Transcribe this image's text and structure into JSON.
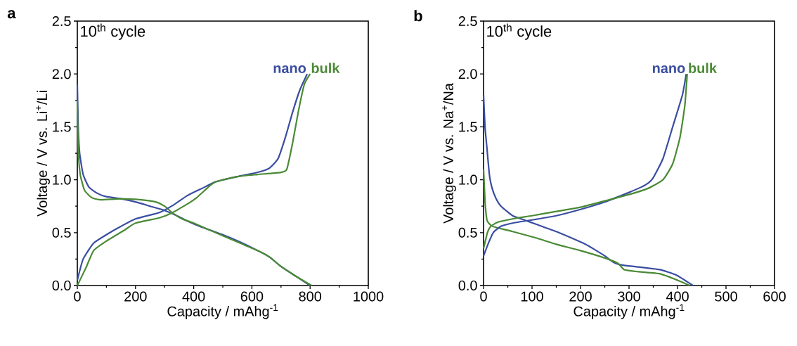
{
  "chart_data": [
    {
      "type": "line",
      "title": "a",
      "xlabel": "Capacity / mAhg$^{-1}$",
      "ylabel": "Voltage / V vs. Li$^{+}$/Li",
      "annotations": [
        "10$^{th}$ cycle"
      ],
      "xlim": [
        0,
        1000
      ],
      "ylim": [
        0,
        2.5
      ],
      "xticks": [
        0,
        200,
        400,
        600,
        800,
        1000
      ],
      "yticks": [
        {
          "value": 0,
          "label": "0.0"
        },
        {
          "value": 0.5,
          "label": "0.5"
        },
        {
          "value": 1,
          "label": "1.0"
        },
        {
          "value": 1.5,
          "label": "1.5"
        },
        {
          "value": 2,
          "label": "2.0"
        },
        {
          "value": 2.5,
          "label": "2.5"
        }
      ],
      "series": [
        {
          "color": "#3a4da0",
          "x": [
            0,
            3,
            8,
            20,
            40,
            70,
            100,
            150,
            200,
            250,
            300,
            350,
            378,
            420,
            500,
            560,
            620,
            660,
            700,
            750,
            800
          ],
          "values": [
            1.9,
            1.5,
            1.25,
            1.05,
            0.93,
            0.87,
            0.84,
            0.82,
            0.79,
            0.75,
            0.71,
            0.65,
            0.61,
            0.56,
            0.48,
            0.41,
            0.33,
            0.27,
            0.18,
            0.09,
            0
          ]
        },
        {
          "color": "#4a8a35",
          "x": [
            0,
            3,
            10,
            25,
            50,
            80,
            150,
            220,
            270,
            300,
            330,
            360,
            400,
            450,
            500,
            560,
            620,
            660,
            700,
            750,
            805
          ],
          "values": [
            1.75,
            1.3,
            1.05,
            0.9,
            0.83,
            0.81,
            0.82,
            0.81,
            0.79,
            0.75,
            0.68,
            0.63,
            0.59,
            0.53,
            0.47,
            0.4,
            0.33,
            0.27,
            0.18,
            0.09,
            0
          ]
        },
        {
          "name": "nano",
          "color": "#3a4da0",
          "x": [
            0,
            20,
            56,
            100,
            137,
            200,
            282,
            330,
            378,
            430,
            475,
            550,
            620,
            660,
            690,
            715,
            740,
            765,
            790
          ],
          "values": [
            0.05,
            0.25,
            0.4,
            0.48,
            0.54,
            0.63,
            0.69,
            0.76,
            0.85,
            0.92,
            0.98,
            1.03,
            1.07,
            1.11,
            1.2,
            1.4,
            1.64,
            1.85,
            2.0
          ]
        },
        {
          "name": "bulk",
          "color": "#4a8a35",
          "x": [
            0,
            30,
            56,
            100,
            160,
            200,
            282,
            320,
            378,
            410,
            450,
            475,
            550,
            620,
            700,
            720,
            740,
            760,
            780,
            800
          ],
          "values": [
            0,
            0.17,
            0.33,
            0.42,
            0.52,
            0.59,
            0.64,
            0.68,
            0.77,
            0.83,
            0.93,
            0.98,
            1.03,
            1.05,
            1.07,
            1.1,
            1.35,
            1.65,
            1.9,
            2.0
          ]
        }
      ]
    },
    {
      "type": "line",
      "title": "b",
      "xlabel": "Capacity / mAhg$^{-1}$",
      "ylabel": "Voltage / V vs. Na$^{+}$/Na",
      "annotations": [
        "10$^{th}$ cycle"
      ],
      "xlim": [
        0,
        600
      ],
      "ylim": [
        0,
        2.5
      ],
      "xticks": [
        0,
        100,
        200,
        300,
        400,
        500,
        600
      ],
      "yticks": [
        {
          "value": 0,
          "label": "0.0"
        },
        {
          "value": 0.5,
          "label": "0.5"
        },
        {
          "value": 1,
          "label": "1.0"
        },
        {
          "value": 1.5,
          "label": "1.5"
        },
        {
          "value": 2,
          "label": "2.0"
        },
        {
          "value": 2.5,
          "label": "2.5"
        }
      ],
      "series": [
        {
          "color": "#3a4da0",
          "x": [
            0,
            3,
            7,
            12,
            17,
            25,
            36,
            60,
            84,
            108,
            150,
            181,
            210,
            229,
            250,
            268,
            290,
            330,
            364,
            397,
            415,
            432
          ],
          "values": [
            1.8,
            1.5,
            1.3,
            1.05,
            0.93,
            0.83,
            0.75,
            0.66,
            0.62,
            0.58,
            0.51,
            0.45,
            0.39,
            0.34,
            0.28,
            0.22,
            0.19,
            0.17,
            0.15,
            0.1,
            0.05,
            0
          ]
        },
        {
          "color": "#4a8a35",
          "x": [
            0,
            3,
            7,
            15,
            25,
            60,
            108,
            150,
            200,
            250,
            277,
            290,
            320,
            364,
            400,
            425
          ],
          "values": [
            1.1,
            0.8,
            0.62,
            0.57,
            0.55,
            0.51,
            0.45,
            0.39,
            0.33,
            0.26,
            0.21,
            0.15,
            0.13,
            0.11,
            0.05,
            0
          ]
        },
        {
          "name": "nano",
          "color": "#3a4da0",
          "x": [
            0,
            10,
            20,
            36,
            60,
            100,
            150,
            200,
            250,
            300,
            325,
            340,
            350,
            370,
            390,
            410,
            418
          ],
          "values": [
            0.28,
            0.4,
            0.5,
            0.56,
            0.59,
            0.62,
            0.66,
            0.72,
            0.79,
            0.88,
            0.93,
            0.97,
            1.02,
            1.2,
            1.5,
            1.8,
            2.0
          ]
        },
        {
          "name": "bulk",
          "color": "#4a8a35",
          "x": [
            0,
            8,
            15,
            30,
            60,
            100,
            150,
            200,
            250,
            300,
            340,
            370,
            390,
            405,
            415,
            420
          ],
          "values": [
            0.35,
            0.5,
            0.56,
            0.6,
            0.63,
            0.66,
            0.7,
            0.74,
            0.8,
            0.86,
            0.92,
            1.0,
            1.15,
            1.4,
            1.7,
            2.0
          ]
        }
      ]
    }
  ]
}
